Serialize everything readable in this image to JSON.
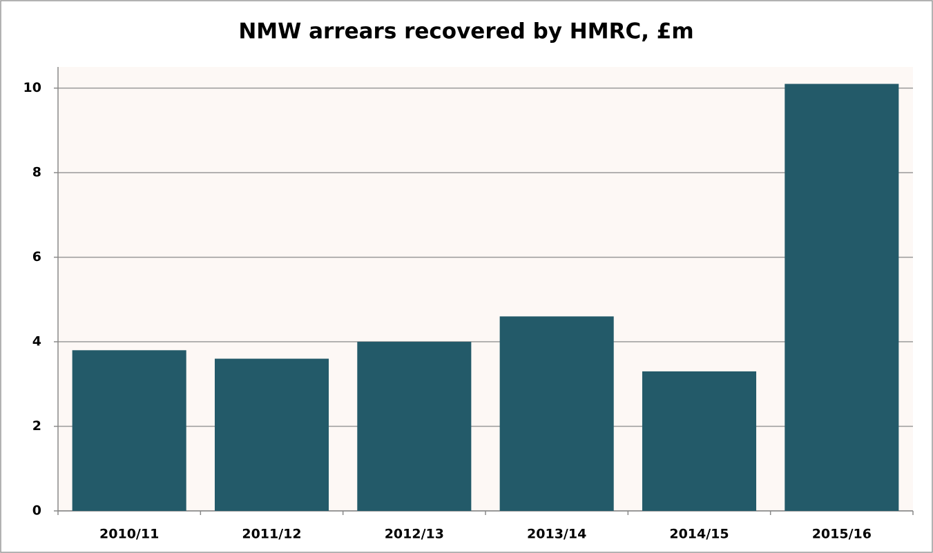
{
  "chart_data": {
    "type": "bar",
    "title": "NMW arrears recovered by HMRC, £m",
    "categories": [
      "2010/11",
      "2011/12",
      "2012/13",
      "2013/14",
      "2014/15",
      "2015/16"
    ],
    "values": [
      3.8,
      3.6,
      4.0,
      4.6,
      3.3,
      10.1
    ],
    "color": "#235a69",
    "ylim": [
      0,
      10.5
    ],
    "yticks": [
      0,
      2,
      4,
      6,
      8,
      10
    ],
    "grid": true
  }
}
